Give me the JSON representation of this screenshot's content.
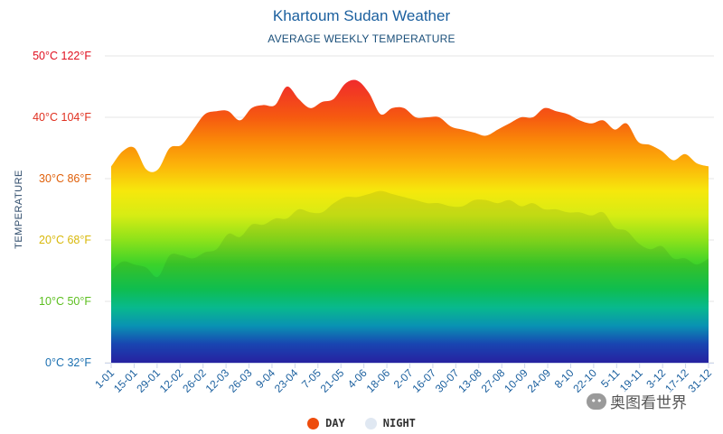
{
  "header": {
    "title": "Khartoum Sudan Weather",
    "subtitle": "AVERAGE WEEKLY TEMPERATURE"
  },
  "watermark": {
    "text": "奥图看世界"
  },
  "chart_data": {
    "type": "area",
    "title": "Khartoum Sudan Weather",
    "subtitle": "AVERAGE WEEKLY TEMPERATURE",
    "ylabel": "TEMPERATURE",
    "xlabel": "",
    "ylim": [
      0,
      50
    ],
    "grid": true,
    "legend_position": "bottom-center",
    "y_ticks": [
      {
        "label": "0°C 32°F",
        "color": "#1a6fb0",
        "value": 0
      },
      {
        "label": "10°C 50°F",
        "color": "#5cbf1f",
        "value": 10
      },
      {
        "label": "20°C 68°F",
        "color": "#d8b80a",
        "value": 20
      },
      {
        "label": "30°C 86°F",
        "color": "#e0600a",
        "value": 30
      },
      {
        "label": "40°C 104°F",
        "color": "#e03020",
        "value": 40
      },
      {
        "label": "50°C 122°F",
        "color": "#e01020",
        "value": 50
      }
    ],
    "x_ticks": [
      "1-01",
      "15-01",
      "29-01",
      "12-02",
      "26-02",
      "12-03",
      "26-03",
      "9-04",
      "23-04",
      "7-05",
      "21-05",
      "4-06",
      "18-06",
      "2-07",
      "16-07",
      "30-07",
      "13-08",
      "27-08",
      "10-09",
      "24-09",
      "8-10",
      "22-10",
      "5-11",
      "19-11",
      "3-12",
      "17-12",
      "31-12"
    ],
    "series": [
      {
        "name": "DAY",
        "color": "#ee4c0c",
        "values": [
          32.0,
          34.5,
          35.0,
          31.5,
          31.5,
          35.0,
          35.5,
          38.0,
          40.5,
          41.0,
          41.0,
          39.5,
          41.5,
          42.0,
          42.0,
          45.0,
          43.0,
          41.5,
          42.5,
          43.0,
          45.5,
          46.0,
          44.0,
          40.5,
          41.5,
          41.5,
          40.0,
          40.0,
          40.0,
          38.5,
          38.0,
          37.5,
          37.0,
          38.0,
          39.0,
          40.0,
          40.0,
          41.5,
          41.0,
          40.5,
          39.5,
          39.0,
          39.5,
          38.0,
          39.0,
          36.0,
          35.5,
          34.5,
          33.0,
          34.0,
          32.5,
          32.0
        ]
      },
      {
        "name": "NIGHT",
        "color": "#e0e8f2",
        "values": [
          15.0,
          16.5,
          16.0,
          15.5,
          14.0,
          17.5,
          17.5,
          17.0,
          18.0,
          18.5,
          21.0,
          20.5,
          22.5,
          22.5,
          23.5,
          23.5,
          25.0,
          24.5,
          24.5,
          26.0,
          27.0,
          27.0,
          27.5,
          28.0,
          27.5,
          27.0,
          26.5,
          26.0,
          26.0,
          25.5,
          25.5,
          26.5,
          26.5,
          26.0,
          26.5,
          25.5,
          26.0,
          25.0,
          25.0,
          24.5,
          24.5,
          24.0,
          24.5,
          22.0,
          21.5,
          19.5,
          18.5,
          19.0,
          17.0,
          17.0,
          16.0,
          17.0
        ]
      }
    ]
  }
}
